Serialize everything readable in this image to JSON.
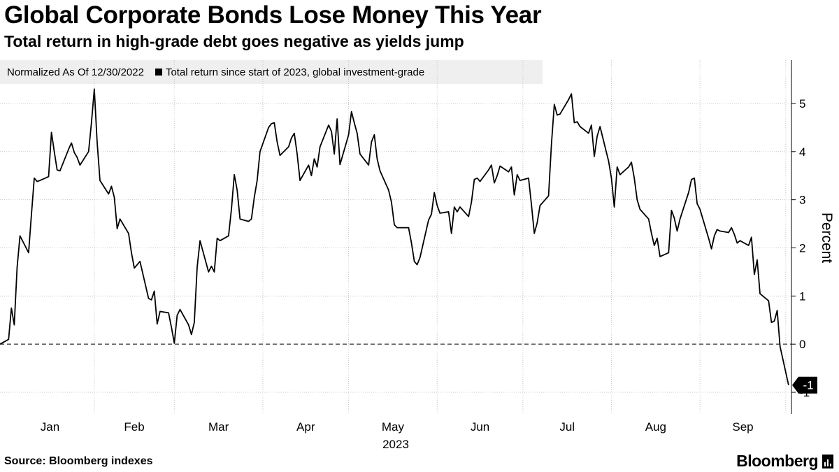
{
  "title": "Global Corporate Bonds Lose Money This Year",
  "subtitle": "Total return in high-grade debt goes negative as yields jump",
  "legend": {
    "note": "Normalized As Of 12/30/2022",
    "series_label": "Total return since start of 2023, global investment-grade"
  },
  "source": "Source: Bloomberg indexes",
  "brand": "Bloomberg",
  "colors": {
    "line": "#000000",
    "legend_bg": "#efefef",
    "grid": "#c8c8c8"
  },
  "chart_data": {
    "type": "line",
    "ylabel": "Percent",
    "xlabel": "2023",
    "ylim": [
      -1.45,
      5.9
    ],
    "yticks": [
      -1,
      0,
      1,
      2,
      3,
      4,
      5
    ],
    "xlim": [
      "2022-12-30",
      "2023-10-03"
    ],
    "month_ticks": [
      "Jan",
      "Feb",
      "Mar",
      "Apr",
      "May",
      "Jun",
      "Jul",
      "Aug",
      "Sep"
    ],
    "year_label": "2023",
    "reference_line": {
      "y": 0,
      "style": "dashed"
    },
    "last_value_label": "-1",
    "grid": true,
    "series": [
      {
        "values": [
          [
            "2022-12-30",
            0.0
          ],
          [
            "2023-01-02",
            0.1
          ],
          [
            "2023-01-03",
            0.75
          ],
          [
            "2023-01-04",
            0.4
          ],
          [
            "2023-01-05",
            1.6
          ],
          [
            "2023-01-06",
            2.25
          ],
          [
            "2023-01-09",
            1.9
          ],
          [
            "2023-01-10",
            2.7
          ],
          [
            "2023-01-11",
            3.45
          ],
          [
            "2023-01-12",
            3.38
          ],
          [
            "2023-01-13",
            3.4
          ],
          [
            "2023-01-16",
            3.48
          ],
          [
            "2023-01-17",
            4.4
          ],
          [
            "2023-01-18",
            4.0
          ],
          [
            "2023-01-19",
            3.62
          ],
          [
            "2023-01-20",
            3.6
          ],
          [
            "2023-01-23",
            4.05
          ],
          [
            "2023-01-24",
            4.18
          ],
          [
            "2023-01-25",
            3.98
          ],
          [
            "2023-01-26",
            3.88
          ],
          [
            "2023-01-27",
            3.72
          ],
          [
            "2023-01-30",
            4.0
          ],
          [
            "2023-01-31",
            4.6
          ],
          [
            "2023-02-01",
            5.3
          ],
          [
            "2023-02-02",
            4.2
          ],
          [
            "2023-02-03",
            3.4
          ],
          [
            "2023-02-06",
            3.12
          ],
          [
            "2023-02-07",
            3.28
          ],
          [
            "2023-02-08",
            3.05
          ],
          [
            "2023-02-09",
            2.4
          ],
          [
            "2023-02-10",
            2.6
          ],
          [
            "2023-02-13",
            2.3
          ],
          [
            "2023-02-14",
            1.9
          ],
          [
            "2023-02-15",
            1.58
          ],
          [
            "2023-02-16",
            1.65
          ],
          [
            "2023-02-17",
            1.72
          ],
          [
            "2023-02-20",
            0.95
          ],
          [
            "2023-02-21",
            0.92
          ],
          [
            "2023-02-22",
            1.1
          ],
          [
            "2023-02-23",
            0.42
          ],
          [
            "2023-02-24",
            0.68
          ],
          [
            "2023-02-27",
            0.65
          ],
          [
            "2023-02-28",
            0.35
          ],
          [
            "2023-03-01",
            0.02
          ],
          [
            "2023-03-02",
            0.6
          ],
          [
            "2023-03-03",
            0.72
          ],
          [
            "2023-03-06",
            0.4
          ],
          [
            "2023-03-07",
            0.2
          ],
          [
            "2023-03-08",
            0.45
          ],
          [
            "2023-03-09",
            1.6
          ],
          [
            "2023-03-10",
            2.15
          ],
          [
            "2023-03-13",
            1.5
          ],
          [
            "2023-03-14",
            1.62
          ],
          [
            "2023-03-15",
            1.5
          ],
          [
            "2023-03-16",
            2.2
          ],
          [
            "2023-03-17",
            2.15
          ],
          [
            "2023-03-20",
            2.25
          ],
          [
            "2023-03-21",
            2.8
          ],
          [
            "2023-03-22",
            3.52
          ],
          [
            "2023-03-23",
            3.2
          ],
          [
            "2023-03-24",
            2.6
          ],
          [
            "2023-03-27",
            2.55
          ],
          [
            "2023-03-28",
            2.6
          ],
          [
            "2023-03-29",
            3.05
          ],
          [
            "2023-03-30",
            3.4
          ],
          [
            "2023-03-31",
            4.0
          ],
          [
            "2023-04-03",
            4.5
          ],
          [
            "2023-04-04",
            4.58
          ],
          [
            "2023-04-05",
            4.6
          ],
          [
            "2023-04-06",
            4.2
          ],
          [
            "2023-04-07",
            3.92
          ],
          [
            "2023-04-10",
            4.1
          ],
          [
            "2023-04-11",
            4.28
          ],
          [
            "2023-04-12",
            4.38
          ],
          [
            "2023-04-13",
            3.95
          ],
          [
            "2023-04-14",
            3.4
          ],
          [
            "2023-04-17",
            3.72
          ],
          [
            "2023-04-18",
            3.5
          ],
          [
            "2023-04-19",
            3.85
          ],
          [
            "2023-04-20",
            3.68
          ],
          [
            "2023-04-21",
            4.1
          ],
          [
            "2023-04-24",
            4.55
          ],
          [
            "2023-04-25",
            4.42
          ],
          [
            "2023-04-26",
            3.95
          ],
          [
            "2023-04-27",
            4.68
          ],
          [
            "2023-04-28",
            3.73
          ],
          [
            "2023-05-01",
            4.35
          ],
          [
            "2023-05-02",
            4.83
          ],
          [
            "2023-05-03",
            4.6
          ],
          [
            "2023-05-04",
            4.38
          ],
          [
            "2023-05-05",
            3.95
          ],
          [
            "2023-05-08",
            3.72
          ],
          [
            "2023-05-09",
            4.2
          ],
          [
            "2023-05-10",
            4.35
          ],
          [
            "2023-05-11",
            3.85
          ],
          [
            "2023-05-12",
            3.6
          ],
          [
            "2023-05-15",
            3.2
          ],
          [
            "2023-05-16",
            2.95
          ],
          [
            "2023-05-17",
            2.48
          ],
          [
            "2023-05-18",
            2.42
          ],
          [
            "2023-05-19",
            2.42
          ],
          [
            "2023-05-22",
            2.42
          ],
          [
            "2023-05-23",
            2.1
          ],
          [
            "2023-05-24",
            1.72
          ],
          [
            "2023-05-25",
            1.65
          ],
          [
            "2023-05-26",
            1.8
          ],
          [
            "2023-05-29",
            2.58
          ],
          [
            "2023-05-30",
            2.7
          ],
          [
            "2023-05-31",
            3.15
          ],
          [
            "2023-06-01",
            2.88
          ],
          [
            "2023-06-02",
            2.72
          ],
          [
            "2023-06-05",
            2.75
          ],
          [
            "2023-06-06",
            2.3
          ],
          [
            "2023-06-07",
            2.85
          ],
          [
            "2023-06-08",
            2.75
          ],
          [
            "2023-06-09",
            2.85
          ],
          [
            "2023-06-12",
            2.65
          ],
          [
            "2023-06-13",
            2.95
          ],
          [
            "2023-06-14",
            3.42
          ],
          [
            "2023-06-15",
            3.45
          ],
          [
            "2023-06-16",
            3.38
          ],
          [
            "2023-06-19",
            3.62
          ],
          [
            "2023-06-20",
            3.72
          ],
          [
            "2023-06-21",
            3.35
          ],
          [
            "2023-06-22",
            3.5
          ],
          [
            "2023-06-23",
            3.7
          ],
          [
            "2023-06-26",
            3.58
          ],
          [
            "2023-06-27",
            3.68
          ],
          [
            "2023-06-28",
            3.1
          ],
          [
            "2023-06-29",
            3.52
          ],
          [
            "2023-06-30",
            3.4
          ],
          [
            "2023-07-03",
            3.45
          ],
          [
            "2023-07-04",
            2.9
          ],
          [
            "2023-07-05",
            2.3
          ],
          [
            "2023-07-06",
            2.52
          ],
          [
            "2023-07-07",
            2.88
          ],
          [
            "2023-07-10",
            3.08
          ],
          [
            "2023-07-11",
            4.15
          ],
          [
            "2023-07-12",
            4.98
          ],
          [
            "2023-07-13",
            4.76
          ],
          [
            "2023-07-14",
            4.78
          ],
          [
            "2023-07-17",
            5.08
          ],
          [
            "2023-07-18",
            5.2
          ],
          [
            "2023-07-19",
            4.6
          ],
          [
            "2023-07-20",
            4.62
          ],
          [
            "2023-07-21",
            4.52
          ],
          [
            "2023-07-24",
            4.38
          ],
          [
            "2023-07-25",
            4.55
          ],
          [
            "2023-07-26",
            3.9
          ],
          [
            "2023-07-27",
            4.32
          ],
          [
            "2023-07-28",
            4.52
          ],
          [
            "2023-07-31",
            3.8
          ],
          [
            "2023-08-01",
            3.45
          ],
          [
            "2023-08-02",
            2.85
          ],
          [
            "2023-08-03",
            3.68
          ],
          [
            "2023-08-04",
            3.52
          ],
          [
            "2023-08-07",
            3.68
          ],
          [
            "2023-08-08",
            3.78
          ],
          [
            "2023-08-09",
            3.45
          ],
          [
            "2023-08-10",
            3.0
          ],
          [
            "2023-08-11",
            2.8
          ],
          [
            "2023-08-14",
            2.6
          ],
          [
            "2023-08-15",
            2.3
          ],
          [
            "2023-08-16",
            2.05
          ],
          [
            "2023-08-17",
            2.2
          ],
          [
            "2023-08-18",
            1.82
          ],
          [
            "2023-08-21",
            1.9
          ],
          [
            "2023-08-22",
            2.78
          ],
          [
            "2023-08-23",
            2.62
          ],
          [
            "2023-08-24",
            2.35
          ],
          [
            "2023-08-25",
            2.6
          ],
          [
            "2023-08-28",
            3.15
          ],
          [
            "2023-08-29",
            3.42
          ],
          [
            "2023-08-30",
            3.45
          ],
          [
            "2023-08-31",
            2.92
          ],
          [
            "2023-09-01",
            2.8
          ],
          [
            "2023-09-04",
            2.2
          ],
          [
            "2023-09-05",
            1.98
          ],
          [
            "2023-09-06",
            2.25
          ],
          [
            "2023-09-07",
            2.38
          ],
          [
            "2023-09-08",
            2.35
          ],
          [
            "2023-09-11",
            2.32
          ],
          [
            "2023-09-12",
            2.42
          ],
          [
            "2023-09-13",
            2.28
          ],
          [
            "2023-09-14",
            2.1
          ],
          [
            "2023-09-15",
            2.15
          ],
          [
            "2023-09-18",
            2.05
          ],
          [
            "2023-09-19",
            2.22
          ],
          [
            "2023-09-20",
            1.45
          ],
          [
            "2023-09-21",
            1.75
          ],
          [
            "2023-09-22",
            1.05
          ],
          [
            "2023-09-25",
            0.9
          ],
          [
            "2023-09-26",
            0.45
          ],
          [
            "2023-09-27",
            0.48
          ],
          [
            "2023-09-28",
            0.7
          ],
          [
            "2023-09-29",
            -0.05
          ],
          [
            "2023-10-02",
            -0.85
          ]
        ]
      }
    ]
  }
}
